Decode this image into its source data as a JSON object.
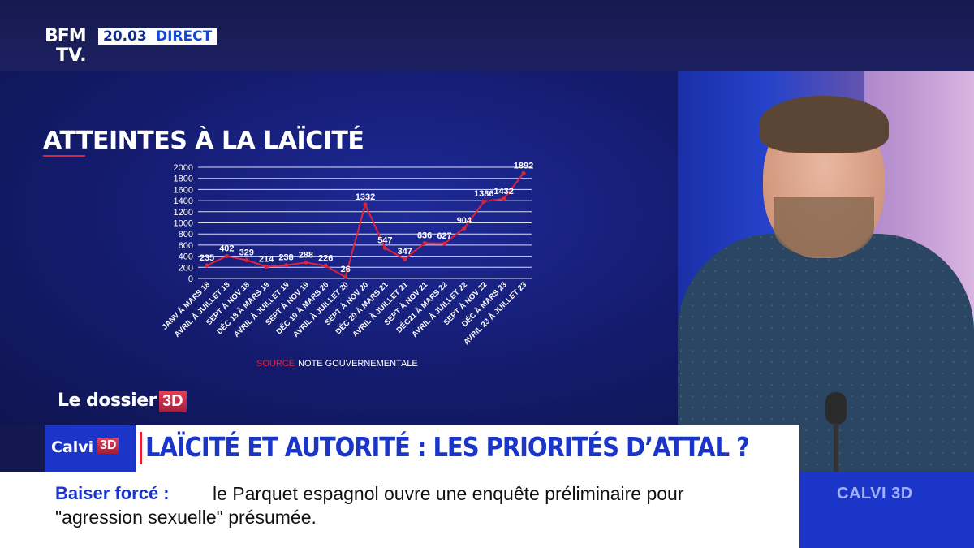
{
  "channel": {
    "logo_top": "BFM",
    "logo_bottom": "TV.",
    "time": "20.03",
    "live_label": "DIRECT"
  },
  "chart_data": {
    "type": "line",
    "title": "ATTEINTES À LA LAÏCITÉ",
    "categories": [
      "JANV À MARS 18",
      "AVRIL À JUILLET 18",
      "SEPT À NOV 18",
      "DÉC 18 À MARS 19",
      "AVRIL À JUILLET 19",
      "SEPT À NOV 19",
      "DÉC 19 À MARS 20",
      "AVRIL À JUILLET 20",
      "SEPT À NOV 20",
      "DÉC 20 À MARS 21",
      "AVRIL À JUILLET 21",
      "SEPT À NOV 21",
      "DÉC21 À MARS 22",
      "AVRIL À JUILLET 22",
      "SEPT À NOV 22",
      "DÉC À MARS 23",
      "AVRIL 23 À JUILLET 23"
    ],
    "values": [
      235,
      402,
      329,
      214,
      238,
      288,
      226,
      26,
      1332,
      547,
      347,
      636,
      627,
      904,
      1386,
      1432,
      1892
    ],
    "data_labels": [
      "235",
      "402",
      "329",
      "214",
      "238",
      "288",
      "226",
      "26",
      "1332",
      "547",
      "347",
      "636",
      "627",
      "904",
      "1386",
      "1432",
      "1892"
    ],
    "y_ticks": [
      0,
      200,
      400,
      600,
      800,
      1000,
      1200,
      1400,
      1600,
      1800,
      2000
    ],
    "ylim": [
      0,
      2000
    ],
    "series_color": "#e0213a",
    "source_label": "SOURCE",
    "source_text": "NOTE GOUVERNEMENTALE"
  },
  "dossier": {
    "label": "Le dossier",
    "badge": "3D"
  },
  "headline": {
    "tag": "Calvi",
    "tag_badge": "3D",
    "text": "LAÏCITÉ ET AUTORITÉ : LES PRIORITÉS D’ATTAL ?"
  },
  "ticker": {
    "keyword": "Baiser forcé  :",
    "line1": "le Parquet espagnol ouvre une enquête préliminaire pour",
    "line2": "\"agression sexuelle\" présumée."
  },
  "brand_box": "CALVI 3D"
}
